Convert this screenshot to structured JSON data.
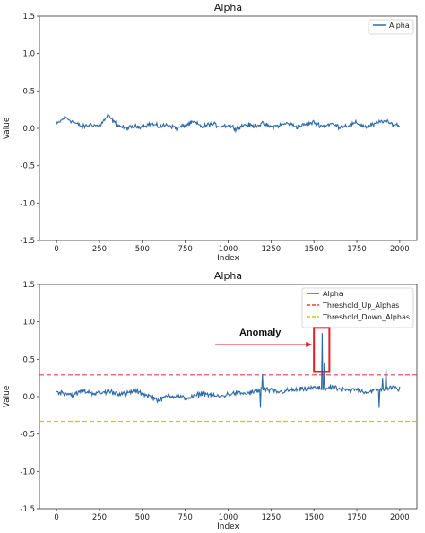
{
  "colors": {
    "series": "#2f6aa8",
    "threshold_up": "#e8423c",
    "threshold_down": "#c8c82a",
    "annotation": "#e02020"
  },
  "chart_data": [
    {
      "type": "line",
      "title": "Alpha",
      "xlabel": "Index",
      "ylabel": "Value",
      "xlim": [
        -100,
        2100
      ],
      "ylim": [
        -1.5,
        1.5
      ],
      "xticks": [
        "0",
        "250",
        "500",
        "750",
        "1000",
        "1250",
        "1500",
        "1750",
        "2000"
      ],
      "yticks": [
        "-1.5",
        "-1.0",
        "-0.5",
        "0.0",
        "0.5",
        "1.0",
        "1.5"
      ],
      "legend_position": "top-right",
      "series": [
        {
          "name": "Alpha",
          "x_range": [
            0,
            2000
          ],
          "typical_range": [
            -0.08,
            0.2
          ],
          "values_sampled_every_50": [
            0.05,
            0.15,
            0.08,
            0.02,
            0.05,
            0.03,
            0.17,
            0.05,
            0.0,
            0.02,
            0.03,
            0.06,
            0.02,
            0.05,
            0.0,
            0.04,
            0.08,
            0.02,
            0.06,
            0.03,
            0.04,
            0.0,
            0.05,
            0.03,
            0.06,
            0.02,
            0.04,
            0.07,
            0.02,
            0.05,
            0.08,
            0.03,
            0.06,
            0.02,
            0.04,
            0.07,
            0.02,
            0.05,
            0.1,
            0.06,
            0.04
          ]
        }
      ]
    },
    {
      "type": "line",
      "title": "Alpha",
      "xlabel": "Index",
      "ylabel": "Value",
      "xlim": [
        -100,
        2100
      ],
      "ylim": [
        -1.5,
        1.5
      ],
      "xticks": [
        "0",
        "250",
        "500",
        "750",
        "1000",
        "1250",
        "1500",
        "1750",
        "2000"
      ],
      "yticks": [
        "-1.5",
        "-1.0",
        "-0.5",
        "0.0",
        "0.5",
        "1.0",
        "1.5"
      ],
      "legend_position": "top-right",
      "series": [
        {
          "name": "Alpha",
          "x_range": [
            0,
            2000
          ],
          "typical_range": [
            -0.15,
            0.2
          ],
          "values_sampled_every_50": [
            0.06,
            0.05,
            0.02,
            0.08,
            0.05,
            0.04,
            0.07,
            0.05,
            0.03,
            0.08,
            0.04,
            0.0,
            -0.05,
            0.02,
            0.0,
            -0.02,
            0.0,
            0.05,
            0.02,
            0.0,
            0.03,
            0.05,
            0.04,
            0.06,
            0.1,
            0.08,
            0.06,
            0.08,
            0.09,
            0.1,
            0.12,
            0.1,
            0.12,
            0.1,
            0.08,
            0.1,
            0.06,
            0.08,
            0.1,
            0.12,
            0.1
          ],
          "spikes": [
            {
              "x": 1190,
              "y": -0.15
            },
            {
              "x": 1200,
              "y": 0.3
            },
            {
              "x": 1550,
              "y": 0.85
            },
            {
              "x": 1560,
              "y": 0.45
            },
            {
              "x": 1880,
              "y": -0.15
            },
            {
              "x": 1900,
              "y": 0.25
            },
            {
              "x": 1920,
              "y": 0.38
            }
          ]
        },
        {
          "name": "Threshold_Up_Alphas",
          "constant": 0.29
        },
        {
          "name": "Threshold_Down_Alphas",
          "constant": -0.33
        }
      ],
      "annotations": [
        {
          "text": "Anomaly",
          "box_x": [
            1500,
            1590
          ],
          "box_y": [
            0.33,
            0.92
          ]
        }
      ]
    }
  ]
}
